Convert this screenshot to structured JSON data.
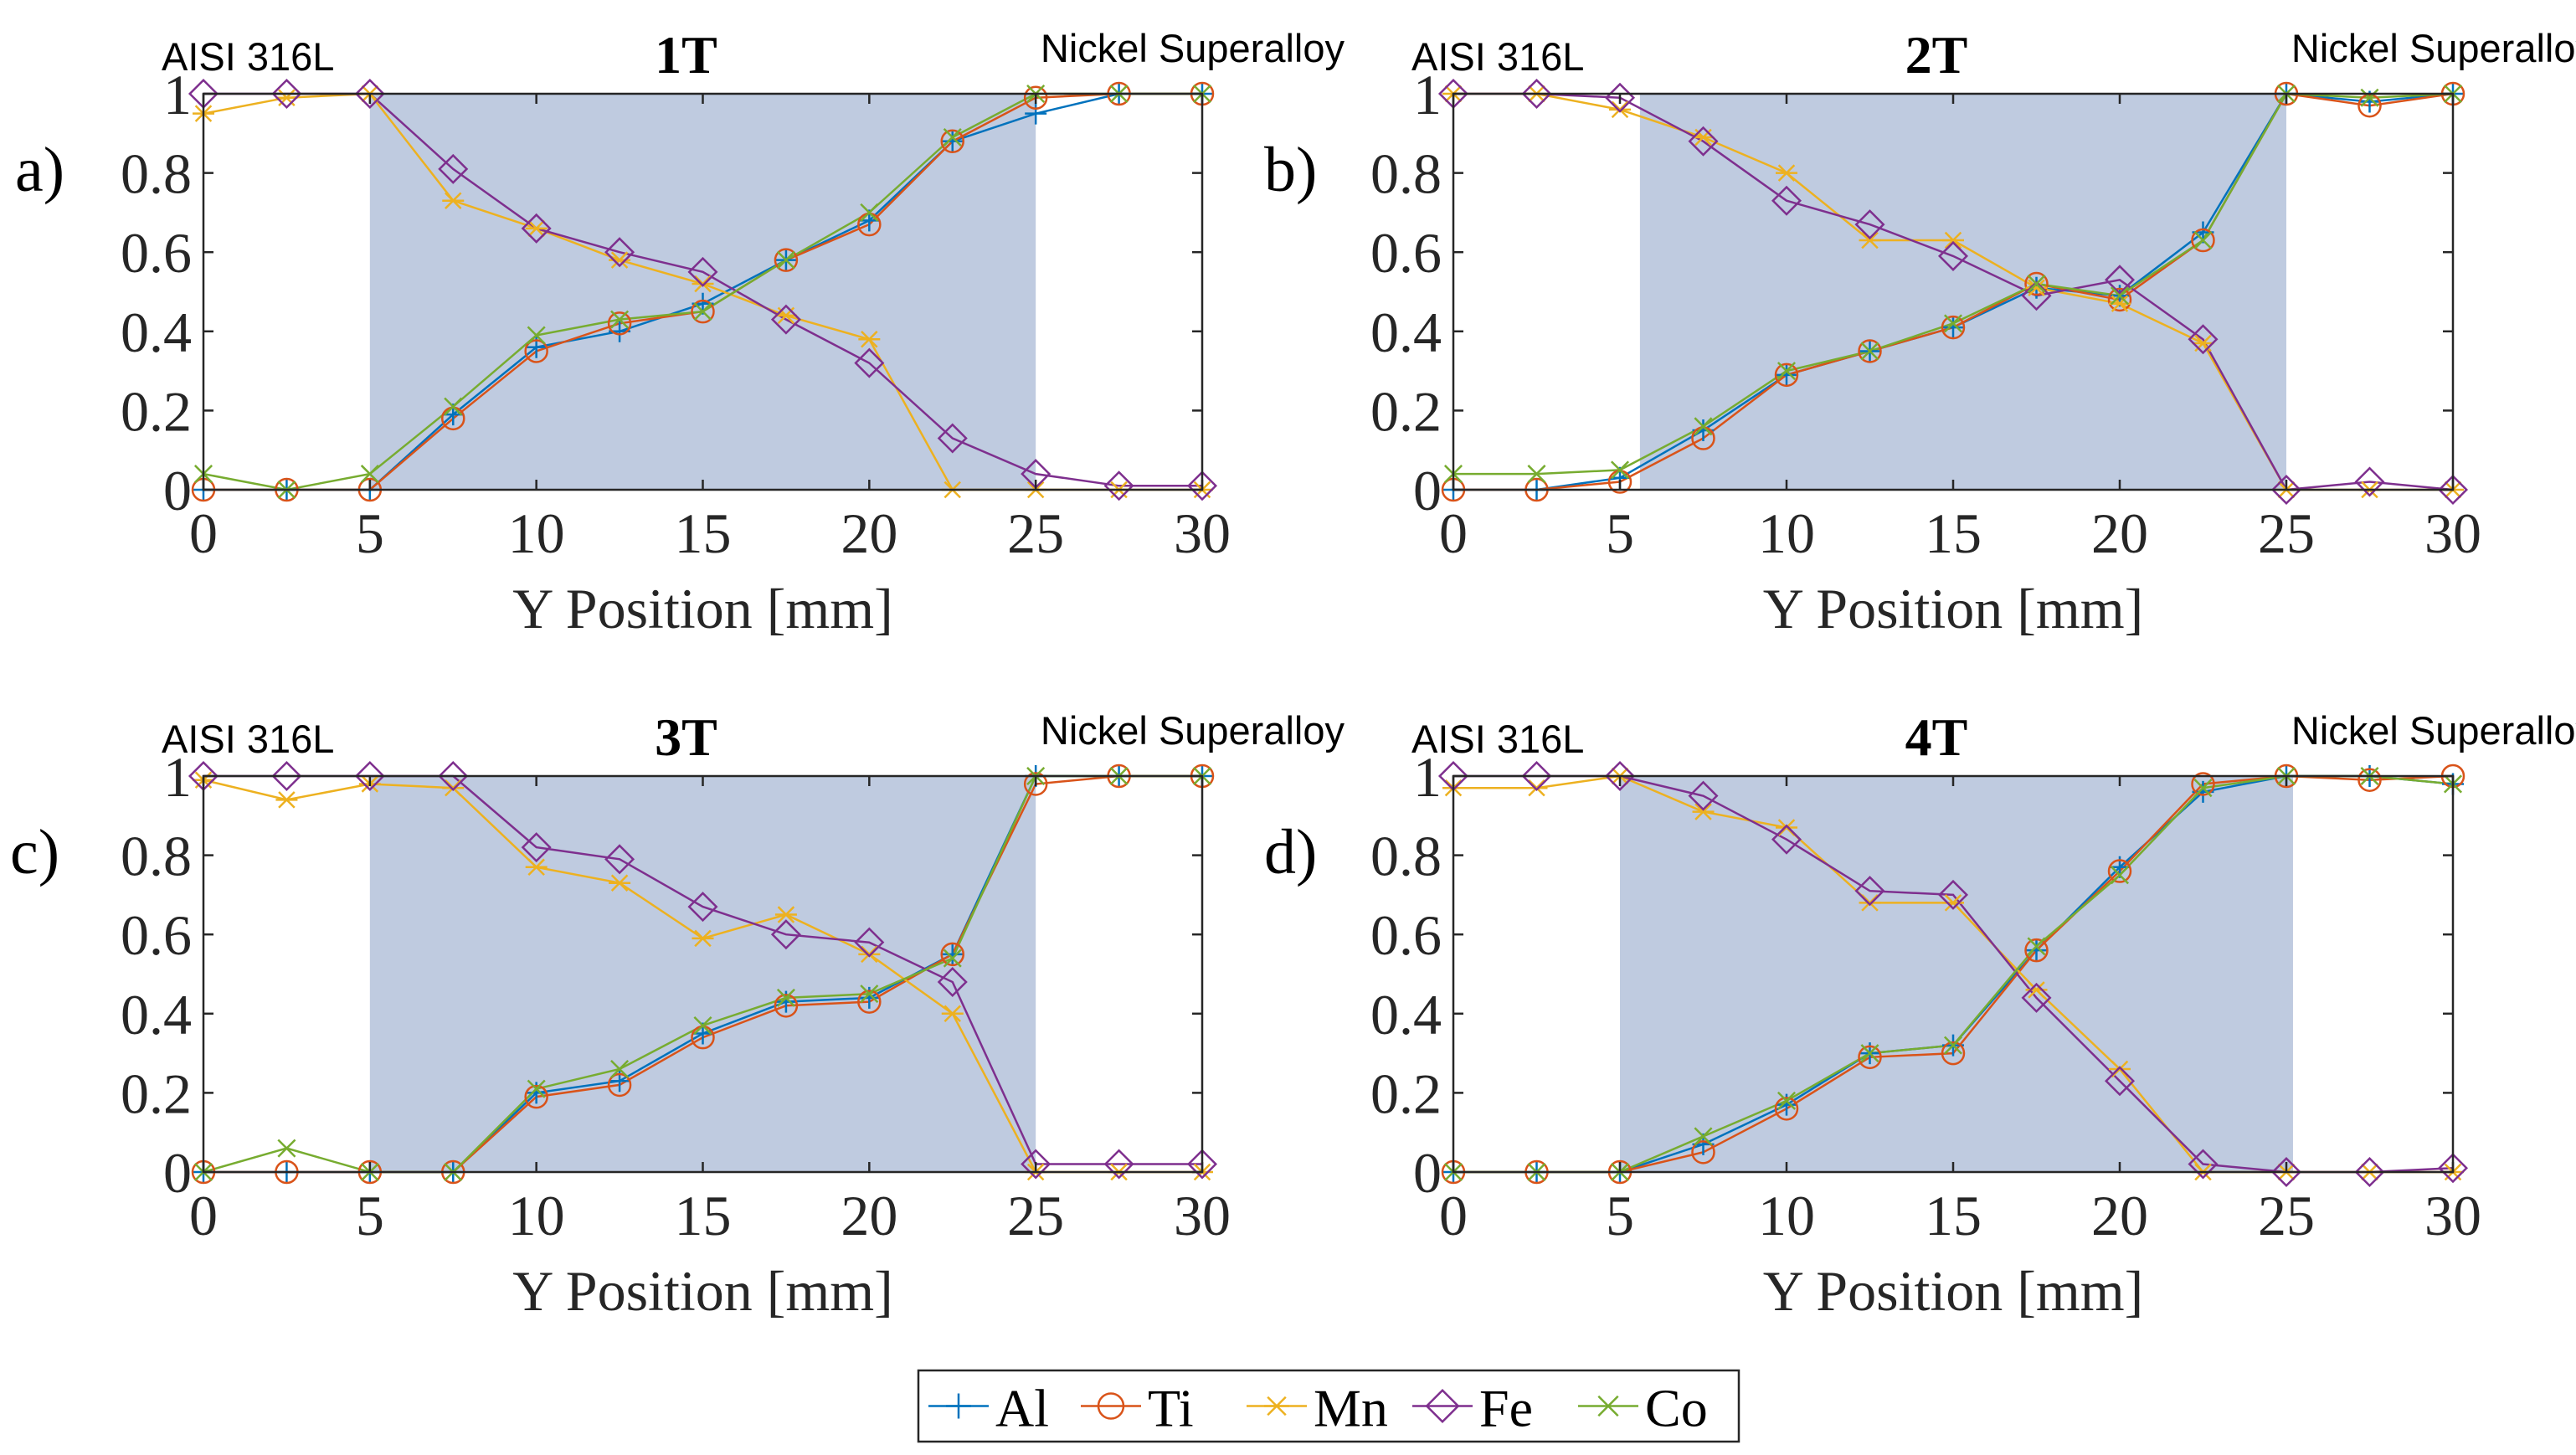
{
  "legend": {
    "items": [
      {
        "name": "Al",
        "color": "#0072BD",
        "marker": "plus"
      },
      {
        "name": "Ti",
        "color": "#D95319",
        "marker": "circle"
      },
      {
        "name": "Mn",
        "color": "#EDB120",
        "marker": "asterisk"
      },
      {
        "name": "Fe",
        "color": "#7E2F8E",
        "marker": "diamond"
      },
      {
        "name": "Co",
        "color": "#77AC30",
        "marker": "x"
      }
    ]
  },
  "chart_data": [
    {
      "type": "line",
      "panel_label": "a)",
      "title": "1T",
      "left_annotation": "AISI 316L",
      "right_annotation": "Nickel Superalloy",
      "xlabel": "Y Position [mm]",
      "ylabel": "",
      "xlim": [
        0,
        30
      ],
      "ylim": [
        0,
        1
      ],
      "xticks": [
        "0",
        "5",
        "10",
        "15",
        "20",
        "25",
        "30"
      ],
      "yticks": [
        "0",
        "0.2",
        "0.4",
        "0.6",
        "0.8",
        "1"
      ],
      "shaded_region": [
        5,
        25
      ],
      "shade_color": "#BFCBE0",
      "x": [
        0,
        2.5,
        5,
        7.5,
        10,
        12.5,
        15,
        17.5,
        20,
        22.5,
        25,
        27.5,
        30
      ],
      "series": [
        {
          "name": "Al",
          "values": [
            0,
            0,
            0,
            0.19,
            0.36,
            0.4,
            0.47,
            0.58,
            0.68,
            0.88,
            0.95,
            1,
            1
          ]
        },
        {
          "name": "Ti",
          "values": [
            0,
            0,
            0,
            0.18,
            0.35,
            0.42,
            0.45,
            0.58,
            0.67,
            0.88,
            0.99,
            1,
            1
          ]
        },
        {
          "name": "Mn",
          "values": [
            0.95,
            0.99,
            1,
            0.73,
            0.66,
            0.58,
            0.52,
            0.44,
            0.38,
            0,
            0,
            0,
            0
          ]
        },
        {
          "name": "Fe",
          "values": [
            1,
            1,
            1,
            0.81,
            0.66,
            0.6,
            0.55,
            0.43,
            0.32,
            0.13,
            0.04,
            0.01,
            0.01
          ]
        },
        {
          "name": "Co",
          "values": [
            0.04,
            0,
            0.04,
            0.21,
            0.39,
            0.43,
            0.45,
            0.58,
            0.7,
            0.89,
            1,
            1,
            1
          ]
        }
      ]
    },
    {
      "type": "line",
      "panel_label": "b)",
      "title": "2T",
      "left_annotation": "AISI 316L",
      "right_annotation": "Nickel Superalloy",
      "xlabel": "Y Position [mm]",
      "ylabel": "",
      "xlim": [
        0,
        30
      ],
      "ylim": [
        0,
        1
      ],
      "xticks": [
        "0",
        "5",
        "10",
        "15",
        "20",
        "25",
        "30"
      ],
      "yticks": [
        "0",
        "0.2",
        "0.4",
        "0.6",
        "0.8",
        "1"
      ],
      "shaded_region": [
        5.6,
        25
      ],
      "shade_color": "#BFCBE0",
      "x": [
        0,
        2.5,
        5,
        7.5,
        10,
        12.5,
        15,
        17.5,
        20,
        22.5,
        25,
        27.5,
        30
      ],
      "series": [
        {
          "name": "Al",
          "values": [
            0,
            0,
            0.03,
            0.15,
            0.29,
            0.35,
            0.41,
            0.51,
            0.49,
            0.65,
            1,
            0.98,
            1
          ]
        },
        {
          "name": "Ti",
          "values": [
            0,
            0,
            0.02,
            0.13,
            0.29,
            0.35,
            0.41,
            0.52,
            0.48,
            0.63,
            1,
            0.97,
            1
          ]
        },
        {
          "name": "Mn",
          "values": [
            1,
            1,
            0.96,
            0.89,
            0.8,
            0.63,
            0.63,
            0.51,
            0.47,
            0.37,
            0,
            0,
            0
          ]
        },
        {
          "name": "Fe",
          "values": [
            1,
            1,
            0.99,
            0.88,
            0.73,
            0.67,
            0.59,
            0.49,
            0.53,
            0.38,
            0,
            0.02,
            0
          ]
        },
        {
          "name": "Co",
          "values": [
            0.04,
            0.04,
            0.05,
            0.16,
            0.3,
            0.35,
            0.42,
            0.52,
            0.49,
            0.63,
            1,
            0.99,
            1
          ]
        }
      ]
    },
    {
      "type": "line",
      "panel_label": "c)",
      "title": "3T",
      "left_annotation": "AISI 316L",
      "right_annotation": "Nickel Superalloy",
      "xlabel": "Y Position [mm]",
      "ylabel": "",
      "xlim": [
        0,
        30
      ],
      "ylim": [
        0,
        1
      ],
      "xticks": [
        "0",
        "5",
        "10",
        "15",
        "20",
        "25",
        "30"
      ],
      "yticks": [
        "0",
        "0.2",
        "0.4",
        "0.6",
        "0.8",
        "1"
      ],
      "shaded_region": [
        5,
        25
      ],
      "shade_color": "#BFCBE0",
      "x": [
        0,
        2.5,
        5,
        7.5,
        10,
        12.5,
        15,
        17.5,
        20,
        22.5,
        25,
        27.5,
        30
      ],
      "series": [
        {
          "name": "Al",
          "values": [
            0,
            0,
            0,
            0,
            0.2,
            0.23,
            0.35,
            0.43,
            0.44,
            0.55,
            1,
            1,
            1
          ]
        },
        {
          "name": "Ti",
          "values": [
            0,
            0,
            0,
            0,
            0.19,
            0.22,
            0.34,
            0.42,
            0.43,
            0.55,
            0.98,
            1,
            1
          ]
        },
        {
          "name": "Mn",
          "values": [
            0.99,
            0.94,
            0.98,
            0.97,
            0.77,
            0.73,
            0.59,
            0.65,
            0.55,
            0.4,
            0,
            0,
            0
          ]
        },
        {
          "name": "Fe",
          "values": [
            1,
            1,
            1,
            1,
            0.82,
            0.79,
            0.67,
            0.6,
            0.58,
            0.48,
            0.02,
            0.02,
            0.02
          ]
        },
        {
          "name": "Co",
          "values": [
            0,
            0.06,
            0,
            0,
            0.21,
            0.26,
            0.37,
            0.44,
            0.45,
            0.54,
            1,
            1,
            1
          ]
        }
      ]
    },
    {
      "type": "line",
      "panel_label": "d)",
      "title": "4T",
      "left_annotation": "AISI 316L",
      "right_annotation": "Nickel Superalloy",
      "xlabel": "Y Position [mm]",
      "ylabel": "",
      "xlim": [
        0,
        30
      ],
      "ylim": [
        0,
        1
      ],
      "xticks": [
        "0",
        "5",
        "10",
        "15",
        "20",
        "25",
        "30"
      ],
      "yticks": [
        "0",
        "0.2",
        "0.4",
        "0.6",
        "0.8",
        "1"
      ],
      "shaded_region": [
        5,
        25.2
      ],
      "shade_color": "#BFCBE0",
      "x": [
        0,
        2.5,
        5,
        7.5,
        10,
        12.5,
        15,
        17.5,
        20,
        22.5,
        25,
        27.5,
        30
      ],
      "series": [
        {
          "name": "Al",
          "values": [
            0,
            0,
            0,
            0.07,
            0.17,
            0.3,
            0.32,
            0.56,
            0.77,
            0.96,
            1,
            1,
            0.98
          ]
        },
        {
          "name": "Ti",
          "values": [
            0,
            0,
            0,
            0.05,
            0.16,
            0.29,
            0.3,
            0.56,
            0.76,
            0.98,
            1,
            0.99,
            1
          ]
        },
        {
          "name": "Mn",
          "values": [
            0.97,
            0.97,
            1,
            0.91,
            0.87,
            0.68,
            0.68,
            0.46,
            0.26,
            0,
            0,
            0,
            0
          ]
        },
        {
          "name": "Fe",
          "values": [
            1,
            1,
            1,
            0.95,
            0.84,
            0.71,
            0.7,
            0.44,
            0.23,
            0.02,
            0,
            0,
            0.01
          ]
        },
        {
          "name": "Co",
          "values": [
            0,
            0,
            0,
            0.09,
            0.18,
            0.3,
            0.32,
            0.57,
            0.75,
            0.97,
            1,
            1,
            0.98
          ]
        }
      ]
    }
  ]
}
